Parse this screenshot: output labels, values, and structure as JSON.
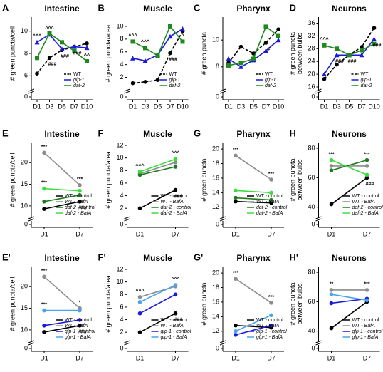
{
  "chart_data": [
    {
      "type": "line",
      "panel": "A",
      "title": "Intestine",
      "ylabel": [
        "# green puncta/cell"
      ],
      "categories": [
        "D1",
        "D3",
        "D5",
        "D7",
        "D10"
      ],
      "ylim": [
        5,
        11
      ],
      "yticks": [
        6,
        8,
        10
      ],
      "ybreak_tick": 0,
      "legend": "lower right",
      "series": [
        {
          "name": "WT",
          "color": "#000000",
          "dash": true,
          "marker": "circle",
          "values": [
            6.2,
            7.6,
            8.3,
            8.6,
            8.9
          ]
        },
        {
          "name": "glp-1",
          "color": "#1a1adb",
          "dash": false,
          "marker": "triangle",
          "values": [
            9.0,
            9.7,
            8.4,
            8.6,
            8.5
          ]
        },
        {
          "name": "daf-2",
          "color": "#1e8a1e",
          "dash": false,
          "marker": "square",
          "values": [
            7.6,
            9.8,
            9.0,
            8.2,
            7.3
          ]
        }
      ],
      "annotations": [
        {
          "text": "^^^",
          "x": "D1",
          "series": "glp-1",
          "color": "#1a1adb"
        },
        {
          "text": "^^^",
          "x": "D3",
          "series": "glp-1",
          "color": "#1a1adb"
        },
        {
          "text": "###",
          "x": "D3",
          "series": "WT",
          "color": "#000000"
        },
        {
          "text": "###",
          "x": "D5",
          "series": "WT",
          "color": "#000000"
        },
        {
          "text": "###",
          "x": "D7",
          "series": "WT",
          "color": "#000000"
        },
        {
          "text": "^^",
          "x": "D10",
          "series": "daf-2",
          "color": "#1e8a1e"
        }
      ]
    },
    {
      "type": "line",
      "panel": "B",
      "title": "Muscle",
      "ylabel": [
        "# green puncta/area"
      ],
      "categories": [
        "D1",
        "D3",
        "D5",
        "D7",
        "D10"
      ],
      "ylim": [
        0.5,
        11
      ],
      "yticks": [
        2,
        4,
        6,
        8,
        10
      ],
      "ybreak_tick": 0,
      "legend": "lower right",
      "series": [
        {
          "name": "WT",
          "color": "#000000",
          "dash": true,
          "marker": "circle",
          "values": [
            1.1,
            1.3,
            1.6,
            5.8,
            9.2
          ]
        },
        {
          "name": "glp-1",
          "color": "#1a1adb",
          "dash": false,
          "marker": "triangle",
          "values": [
            5.0,
            4.6,
            5.5,
            8.4,
            9.6
          ]
        },
        {
          "name": "daf-2",
          "color": "#1e8a1e",
          "dash": false,
          "marker": "square",
          "values": [
            7.6,
            6.6,
            5.4,
            10.0,
            7.6
          ]
        }
      ],
      "annotations": [
        {
          "text": "^^^",
          "x": "D1",
          "series": "daf-2",
          "color": "#1e8a1e"
        },
        {
          "text": "^^^",
          "x": "D3",
          "series": "daf-2",
          "color": "#1e8a1e"
        },
        {
          "text": "###",
          "x": "D7",
          "series": "WT",
          "color": "#1a1adb"
        },
        {
          "text": "^",
          "x": "D10",
          "series": "daf-2",
          "color": "#1e8a1e"
        }
      ]
    },
    {
      "type": "line",
      "panel": "C",
      "title": "Pharynx",
      "ylabel": [
        "# green puncta"
      ],
      "categories": [
        "D1",
        "D3",
        "D5",
        "D7",
        "D10"
      ],
      "ylim": [
        6.5,
        11.5
      ],
      "yticks": [
        8,
        10
      ],
      "ybreak_tick": 0,
      "legend": "lower right",
      "series": [
        {
          "name": "WT",
          "color": "#000000",
          "dash": true,
          "marker": "circle",
          "values": [
            8.3,
            9.5,
            9.0,
            9.8,
            10.8
          ]
        },
        {
          "name": "glp-1",
          "color": "#1a1adb",
          "dash": false,
          "marker": "triangle",
          "values": [
            8.6,
            8.0,
            8.5,
            9.2,
            10.0
          ]
        },
        {
          "name": "daf-2",
          "color": "#1e8a1e",
          "dash": false,
          "marker": "square",
          "values": [
            8.1,
            8.3,
            8.6,
            11.0,
            10.3
          ]
        }
      ],
      "annotations": [
        {
          "text": "#",
          "x": "D7",
          "series": "WT",
          "color": "#1e8a1e"
        }
      ]
    },
    {
      "type": "line",
      "panel": "D",
      "title": "Neurons",
      "ylabel": [
        "# green puncta",
        "between bulbs"
      ],
      "categories": [
        "D1",
        "D3",
        "D5",
        "D7",
        "D10"
      ],
      "ylim": [
        16,
        37
      ],
      "yticks": [
        16,
        20,
        24,
        28,
        32,
        36
      ],
      "ybreak_tick": 0,
      "legend": "lower right",
      "series": [
        {
          "name": "WT",
          "color": "#000000",
          "dash": true,
          "marker": "circle",
          "values": [
            18.5,
            23,
            26,
            28.5,
            34.5
          ]
        },
        {
          "name": "glp-1",
          "color": "#1a1adb",
          "dash": false,
          "marker": "triangle",
          "values": [
            20,
            26,
            26,
            26,
            31
          ]
        },
        {
          "name": "daf-2",
          "color": "#1e8a1e",
          "dash": false,
          "marker": "square",
          "values": [
            29,
            28,
            26,
            27.5,
            29.5
          ]
        }
      ],
      "annotations": [
        {
          "text": "^^^",
          "x": "D1",
          "series": "daf-2",
          "color": "#1e8a1e"
        },
        {
          "text": "###",
          "x": "D3",
          "series": "glp-1",
          "color": "#1a1adb"
        },
        {
          "text": "###",
          "x": "D5",
          "series": "WT",
          "color": "#1a1adb"
        },
        {
          "text": "###",
          "x": "D10",
          "series": "glp-1",
          "color": "#1a1adb"
        }
      ]
    },
    {
      "type": "line",
      "panel": "E",
      "title": "Intestine",
      "ylabel": [
        "# green puncta/cell"
      ],
      "categories": [
        "D1",
        "D7"
      ],
      "ylim": [
        8,
        24
      ],
      "yticks": [
        10,
        15,
        20
      ],
      "ybreak_tick": 0,
      "legend": "lower right",
      "series": [
        {
          "name": "WT - control",
          "color": "#000000",
          "dash": false,
          "marker": "circle",
          "values": [
            9.3,
            11.0
          ]
        },
        {
          "name": "WT - BafA",
          "color": "#8c8c8c",
          "dash": false,
          "marker": "circle",
          "values": [
            22.3,
            14.8
          ]
        },
        {
          "name": "daf-2 - control",
          "color": "#1e7a1e",
          "dash": false,
          "marker": "circle",
          "values": [
            11.0,
            12.5
          ]
        },
        {
          "name": "daf-2 - BafA",
          "color": "#3ddc3d",
          "dash": false,
          "marker": "circle",
          "values": [
            14.0,
            13.5
          ]
        }
      ],
      "annotations": [
        {
          "text": "***",
          "x": "D1",
          "series": "WT - BafA",
          "color": "#8c8c8c"
        },
        {
          "text": "***",
          "x": "D7",
          "series": "WT - BafA",
          "color": "#8c8c8c"
        },
        {
          "text": "***",
          "x": "D1",
          "series": "daf-2 - BafA",
          "color": "#3ddc3d"
        },
        {
          "text": "###",
          "x": "D7",
          "series": "WT - control",
          "color": "#000000"
        }
      ]
    },
    {
      "type": "line",
      "panel": "F",
      "title": "Muscle",
      "ylabel": [
        "# green puncta/area"
      ],
      "categories": [
        "D1",
        "D7"
      ],
      "ylim": [
        1,
        12
      ],
      "yticks": [
        2,
        4,
        6,
        8,
        10,
        12
      ],
      "ybreak_tick": 0,
      "legend": "lower right",
      "series": [
        {
          "name": "WT - control",
          "color": "#000000",
          "dash": false,
          "marker": "circle",
          "values": [
            2.0,
            4.9
          ]
        },
        {
          "name": "WT - BafA",
          "color": "#8c8c8c",
          "dash": false,
          "marker": "circle",
          "values": [
            7.5,
            9.3
          ]
        },
        {
          "name": "daf-2 - control",
          "color": "#1e7a1e",
          "dash": false,
          "marker": "circle",
          "values": [
            7.3,
            8.6
          ]
        },
        {
          "name": "daf-2 - BafA",
          "color": "#3ddc3d",
          "dash": false,
          "marker": "circle",
          "values": [
            7.8,
            9.8
          ]
        }
      ],
      "annotations": [
        {
          "text": "^^^",
          "x": "D1",
          "series": "daf-2 - BafA",
          "color": "#3ddc3d"
        },
        {
          "text": "^^^",
          "x": "D7",
          "series": "daf-2 - BafA",
          "color": "#3ddc3d"
        },
        {
          "text": "###",
          "x": "D7",
          "series": "WT - control",
          "color": "#000000"
        }
      ]
    },
    {
      "type": "line",
      "panel": "G",
      "title": "Pharynx",
      "ylabel": [
        "# green puncta"
      ],
      "categories": [
        "D1",
        "D7"
      ],
      "ylim": [
        11,
        20.5
      ],
      "yticks": [
        12,
        14,
        16,
        18,
        20
      ],
      "ybreak_tick": 0,
      "legend": "lower right",
      "series": [
        {
          "name": "WT - control",
          "color": "#000000",
          "dash": false,
          "marker": "circle",
          "values": [
            12.8,
            12.6
          ]
        },
        {
          "name": "WT - BafA",
          "color": "#8c8c8c",
          "dash": false,
          "marker": "circle",
          "values": [
            19.1,
            15.8
          ]
        },
        {
          "name": "daf-2 - control",
          "color": "#1e7a1e",
          "dash": false,
          "marker": "circle",
          "values": [
            13.3,
            13.0
          ]
        },
        {
          "name": "daf-2 - BafA",
          "color": "#3ddc3d",
          "dash": false,
          "marker": "circle",
          "values": [
            14.3,
            14.0
          ]
        }
      ],
      "annotations": [
        {
          "text": "***",
          "x": "D1",
          "series": "WT - BafA",
          "color": "#8c8c8c"
        },
        {
          "text": "***",
          "x": "D7",
          "series": "WT - BafA",
          "color": "#8c8c8c"
        }
      ]
    },
    {
      "type": "line",
      "panel": "H",
      "title": "Neurons",
      "ylabel": [
        "# green puncta",
        "between bulbs"
      ],
      "categories": [
        "D1",
        "D7"
      ],
      "ylim": [
        35,
        82
      ],
      "yticks": [
        40,
        60,
        80
      ],
      "ybreak_tick": 0,
      "legend": "lower right",
      "series": [
        {
          "name": "WT - control",
          "color": "#000000",
          "dash": false,
          "marker": "circle",
          "values": [
            42,
            60
          ]
        },
        {
          "name": "WT - BafA",
          "color": "#8c8c8c",
          "dash": false,
          "marker": "circle",
          "values": [
            68,
            68
          ]
        },
        {
          "name": "daf-2 - control",
          "color": "#1e7a1e",
          "dash": false,
          "marker": "circle",
          "values": [
            65,
            72
          ]
        },
        {
          "name": "daf-2 - BafA",
          "color": "#3ddc3d",
          "dash": false,
          "marker": "circle",
          "values": [
            72,
            62
          ]
        }
      ],
      "annotations": [
        {
          "text": "***",
          "x": "D1",
          "series": "daf-2 - BafA",
          "color": "#3ddc3d"
        },
        {
          "text": "***",
          "x": "D7",
          "series": "daf-2 - control",
          "color": "#1e7a1e"
        },
        {
          "text": "###",
          "x": "D7",
          "series": "WT - control",
          "color": "#1e7a1e"
        }
      ]
    },
    {
      "type": "line",
      "panel": "E'",
      "title": "Intestine",
      "ylabel": [
        "# green puncta/cell"
      ],
      "categories": [
        "D1",
        "D7"
      ],
      "ylim": [
        8,
        24
      ],
      "yticks": [
        10,
        15,
        20
      ],
      "ybreak_tick": 0,
      "legend": "lower right",
      "series": [
        {
          "name": "WT - control",
          "color": "#000000",
          "dash": false,
          "marker": "circle",
          "values": [
            9.5,
            11.0
          ]
        },
        {
          "name": "WT - BafA",
          "color": "#8c8c8c",
          "dash": false,
          "marker": "circle",
          "values": [
            22.3,
            15.0
          ]
        },
        {
          "name": "glp-1 - control",
          "color": "#1a1adb",
          "dash": false,
          "marker": "circle",
          "values": [
            11.0,
            12.3
          ]
        },
        {
          "name": "glp-1 - BafA",
          "color": "#4aa3f0",
          "dash": false,
          "marker": "circle",
          "values": [
            14.5,
            14.5
          ]
        }
      ],
      "annotations": [
        {
          "text": "***",
          "x": "D1",
          "series": "WT - BafA",
          "color": "#8c8c8c"
        },
        {
          "text": "*",
          "x": "D7",
          "series": "WT - BafA",
          "color": "#1a1adb"
        },
        {
          "text": "***",
          "x": "D1",
          "series": "glp-1 - BafA",
          "color": "#4aa3f0"
        },
        {
          "text": "###",
          "x": "D7",
          "series": "WT - control",
          "color": "#1a1adb"
        }
      ]
    },
    {
      "type": "line",
      "panel": "F'",
      "title": "Muscle",
      "ylabel": [
        "# green puncta/area"
      ],
      "categories": [
        "D1",
        "D7"
      ],
      "ylim": [
        1,
        12
      ],
      "yticks": [
        2,
        4,
        6,
        8,
        10,
        12
      ],
      "ybreak_tick": 0,
      "legend": "lower right",
      "series": [
        {
          "name": "WT - control",
          "color": "#000000",
          "dash": false,
          "marker": "circle",
          "values": [
            2.0,
            5.0
          ]
        },
        {
          "name": "WT - BafA",
          "color": "#8c8c8c",
          "dash": false,
          "marker": "circle",
          "values": [
            7.6,
            9.3
          ]
        },
        {
          "name": "glp-1 - control",
          "color": "#1a1adb",
          "dash": false,
          "marker": "circle",
          "values": [
            5.0,
            8.0
          ]
        },
        {
          "name": "glp-1 - BafA",
          "color": "#4aa3f0",
          "dash": false,
          "marker": "circle",
          "values": [
            6.8,
            9.5
          ]
        }
      ],
      "annotations": [
        {
          "text": "^^^",
          "x": "D1",
          "series": "WT - BafA",
          "color": "#1a1adb"
        },
        {
          "text": "^^^",
          "x": "D7",
          "series": "glp-1 - BafA",
          "color": "#1a1adb"
        },
        {
          "text": "###",
          "x": "D7",
          "series": "WT - control",
          "color": "#000000"
        }
      ]
    },
    {
      "type": "line",
      "panel": "G'",
      "title": "Pharynx",
      "ylabel": [
        "# green puncta"
      ],
      "categories": [
        "D1",
        "D7"
      ],
      "ylim": [
        11,
        20.5
      ],
      "yticks": [
        12,
        14,
        16,
        18,
        20
      ],
      "ybreak_tick": 0,
      "legend": "lower right",
      "series": [
        {
          "name": "WT - control",
          "color": "#000000",
          "dash": false,
          "marker": "circle",
          "values": [
            12.8,
            12.5
          ]
        },
        {
          "name": "WT - BafA",
          "color": "#8c8c8c",
          "dash": false,
          "marker": "circle",
          "values": [
            19.2,
            15.9
          ]
        },
        {
          "name": "glp-1 - control",
          "color": "#1a1adb",
          "dash": false,
          "marker": "circle",
          "values": [
            11.5,
            12.8
          ]
        },
        {
          "name": "glp-1 - BafA",
          "color": "#4aa3f0",
          "dash": false,
          "marker": "circle",
          "values": [
            12.0,
            14.2
          ]
        }
      ],
      "annotations": [
        {
          "text": "***",
          "x": "D1",
          "series": "WT - BafA",
          "color": "#8c8c8c"
        },
        {
          "text": "***",
          "x": "D7",
          "series": "WT - BafA",
          "color": "#8c8c8c"
        }
      ]
    },
    {
      "type": "line",
      "panel": "H'",
      "title": "Neurons",
      "ylabel": [
        "# green puncta",
        "between bulbs"
      ],
      "categories": [
        "D1",
        "D7"
      ],
      "ylim": [
        35,
        82
      ],
      "yticks": [
        40,
        60,
        80
      ],
      "ybreak_tick": 0,
      "legend": "lower right",
      "series": [
        {
          "name": "WT - control",
          "color": "#000000",
          "dash": false,
          "marker": "circle",
          "values": [
            42,
            60
          ]
        },
        {
          "name": "WT - BafA",
          "color": "#8c8c8c",
          "dash": false,
          "marker": "circle",
          "values": [
            68,
            68
          ]
        },
        {
          "name": "glp-1 - control",
          "color": "#1a1adb",
          "dash": false,
          "marker": "circle",
          "values": [
            59,
            62
          ]
        },
        {
          "name": "glp-1 - BafA",
          "color": "#4aa3f0",
          "dash": false,
          "marker": "circle",
          "values": [
            65,
            61
          ]
        }
      ],
      "annotations": [
        {
          "text": "**",
          "x": "D1",
          "series": "WT - BafA",
          "color": "#1a1adb"
        },
        {
          "text": "***",
          "x": "D7",
          "series": "WT - BafA",
          "color": "#8c8c8c"
        }
      ]
    }
  ]
}
